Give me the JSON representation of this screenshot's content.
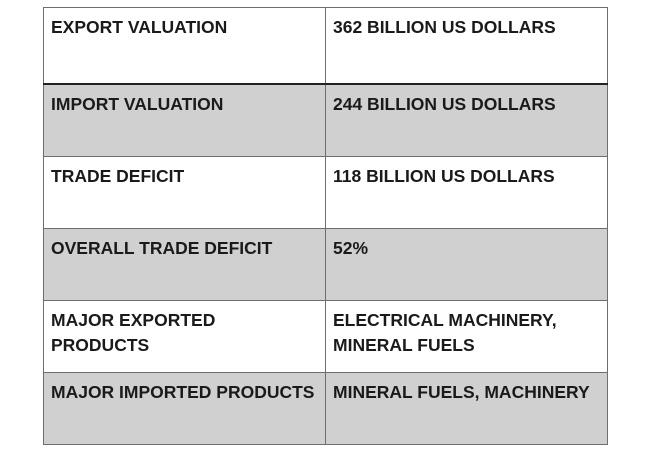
{
  "table": {
    "rows": [
      {
        "label": "EXPORT VALUATION",
        "value": "362 BILLION US DOLLARS"
      },
      {
        "label": "IMPORT VALUATION",
        "value": "244 BILLION US DOLLARS"
      },
      {
        "label": "TRADE DEFICIT",
        "value": "118 BILLION US DOLLARS"
      },
      {
        "label": "OVERALL TRADE DEFICIT",
        "value": "52%"
      },
      {
        "label": "MAJOR EXPORTED PRODUCTS",
        "value": "ELECTRICAL MACHINERY, MINERAL FUELS"
      },
      {
        "label": "MAJOR IMPORTED PRODUCTS",
        "value": "MINERAL FUELS, MACHINERY"
      }
    ],
    "colors": {
      "shaded_row": "#d0d0d0",
      "plain_row": "#ffffff",
      "border": "#6e6e6e",
      "text": "#1a1a1a"
    }
  }
}
